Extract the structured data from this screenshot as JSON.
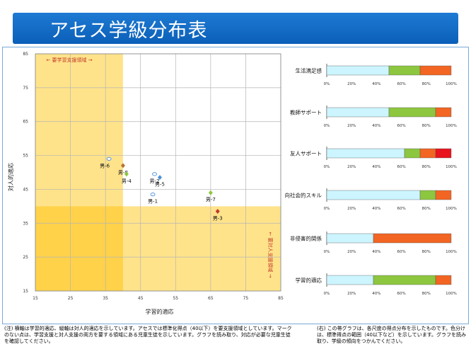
{
  "header": {
    "title": "アセス学級分布表"
  },
  "scatter": {
    "xlabel": "学習的適応",
    "ylabel": "対人的適応",
    "yellow_label": "要学習支援領域",
    "red_label": "要対人支援領域",
    "chart_data": {
      "type": "scatter",
      "xlim": [
        15,
        85
      ],
      "ylim": [
        15,
        85
      ],
      "xticks": [
        "15",
        "25",
        "35",
        "45",
        "55",
        "65",
        "75",
        "85"
      ],
      "yticks": [
        "15",
        "25",
        "35",
        "45",
        "55",
        "65",
        "75",
        "85"
      ],
      "points": [
        {
          "label": "男-6",
          "x": 36,
          "y": 54,
          "color": "#ffffff"
        },
        {
          "label": "男-8",
          "x": 40,
          "y": 52,
          "color": "#b87333"
        },
        {
          "label": "男-4",
          "x": 41,
          "y": 49.5,
          "color": "#8dc63f"
        },
        {
          "label": "男-2",
          "x": 49,
          "y": 49.5,
          "color": "#ffffff"
        },
        {
          "label": "男-5",
          "x": 50.5,
          "y": 48.5,
          "color": "#4a90d9"
        },
        {
          "label": "男-1",
          "x": 48.5,
          "y": 43.5,
          "color": "#ffffff"
        },
        {
          "label": "男-7",
          "x": 65,
          "y": 44,
          "color": "#8dc63f"
        },
        {
          "label": "男-3",
          "x": 67,
          "y": 38.5,
          "color": "#c0392b"
        }
      ]
    }
  },
  "bars": {
    "xticks": [
      "0%",
      "20%",
      "40%",
      "60%",
      "80%",
      "100%"
    ],
    "chart_data": {
      "type": "bar",
      "orientation": "horizontal",
      "stacked": true,
      "categories": [
        "生活満足感",
        "教師サポート",
        "友人サポート",
        "向社会的スキル",
        "非侵害的関係",
        "学習的適応"
      ],
      "series": [
        {
          "color": "#ccf5ff",
          "values": [
            50,
            50,
            62.5,
            75,
            37.5,
            37.5
          ]
        },
        {
          "color": "#8dc63f",
          "values": [
            25,
            37.5,
            12.5,
            12.5,
            0,
            50
          ]
        },
        {
          "color": "#f26522",
          "values": [
            25,
            12.5,
            12.5,
            12.5,
            62.5,
            12.5
          ]
        },
        {
          "color": "#e8141e",
          "values": [
            0,
            0,
            12.5,
            0,
            0,
            0
          ]
        }
      ]
    }
  },
  "notes": {
    "left": "(注) 横軸は学習的適応、縦軸は対人的適応を示しています。アセスでは標準化得点（40以下）を要支援領域としています。マークのない点は、学習支援と対人支援の両方を要する領域にある児童生徒を示しています。グラフを読み取り、対応が必要な児童生徒を確認してください。",
    "right": "(右) この帯グラフは、各尺度の得点分布を示したものです。色分けは、標準得点の範囲（40以下など）を示しています。グラフを読み取り、学級の傾向をつかんでください。"
  }
}
